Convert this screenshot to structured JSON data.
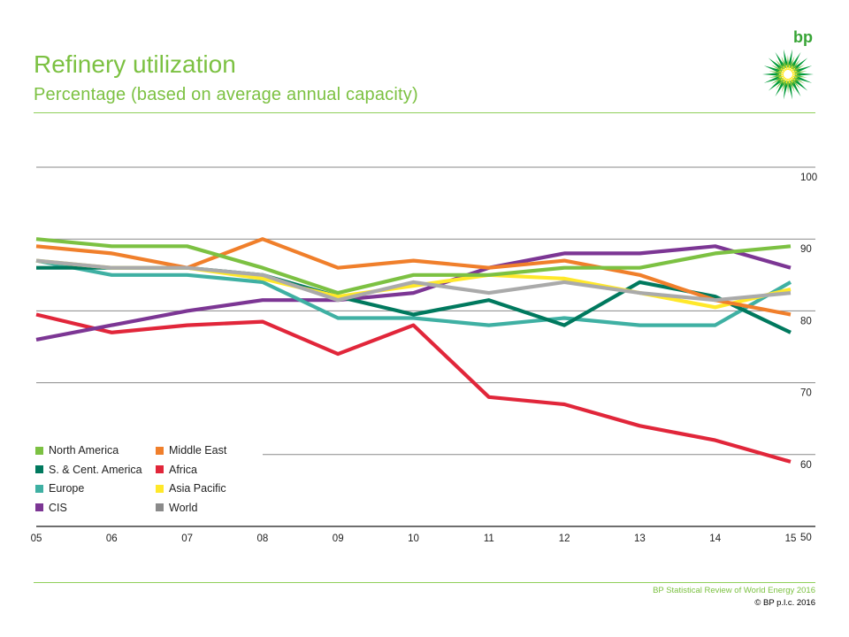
{
  "header": {
    "title": "Refinery utilization",
    "subtitle": "Percentage (based on average annual capacity)",
    "logo_text": "bp"
  },
  "footer": {
    "line1": "BP Statistical Review of World Energy 2016",
    "line2": "© BP p.l.c. 2016"
  },
  "colors": {
    "brand_green": "#7cc142",
    "bp_green": "#009b3a",
    "bp_yellow": "#ffe600"
  },
  "chart_data": {
    "type": "line",
    "x": [
      "05",
      "06",
      "07",
      "08",
      "09",
      "10",
      "11",
      "12",
      "13",
      "14",
      "15"
    ],
    "ylim": [
      50,
      100
    ],
    "yticks": [
      "100",
      "90",
      "80",
      "70",
      "60",
      "50"
    ],
    "grid": true,
    "y_axis_position": "right",
    "legend_position": "bottom-left",
    "series": [
      {
        "name": "North America",
        "color": "#7cc142",
        "values": [
          90,
          89,
          89,
          86,
          82.5,
          85,
          85,
          86,
          86,
          88,
          89
        ]
      },
      {
        "name": "Middle East",
        "color": "#f07f2b",
        "values": [
          89,
          88,
          86,
          90,
          86,
          87,
          86,
          87,
          85,
          81.5,
          79.5
        ]
      },
      {
        "name": "S. & Cent. America",
        "color": "#00795e",
        "values": [
          86,
          86,
          86,
          85,
          82,
          79.5,
          81.5,
          78,
          84,
          82,
          77
        ]
      },
      {
        "name": "Africa",
        "color": "#e1263a",
        "values": [
          79.5,
          77,
          78,
          78.5,
          74,
          78,
          68,
          67,
          64,
          62,
          59
        ]
      },
      {
        "name": "Europe",
        "color": "#3fb0a3",
        "values": [
          87,
          85,
          85,
          84,
          79,
          79,
          78,
          79,
          78,
          78,
          84
        ]
      },
      {
        "name": "Asia Pacific",
        "color": "#ffe82a",
        "values": [
          87,
          86,
          86,
          84.5,
          82,
          83.5,
          85,
          84.5,
          82.5,
          80.5,
          83
        ]
      },
      {
        "name": "CIS",
        "color": "#7c3694",
        "values": [
          76,
          78,
          80,
          81.5,
          81.5,
          82.5,
          86,
          88,
          88,
          89,
          86
        ]
      },
      {
        "name": "World",
        "color": "#aaaaaa",
        "values": [
          87,
          86,
          86,
          85,
          81.5,
          84,
          82.5,
          84,
          82.5,
          81.5,
          82.5
        ]
      }
    ]
  }
}
